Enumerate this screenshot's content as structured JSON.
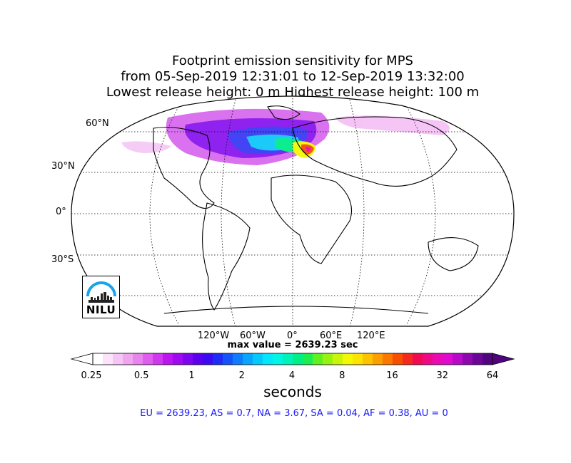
{
  "title": {
    "line1": "Footprint emission sensitivity for MPS",
    "line2": "from 05-Sep-2019 12:31:01 to 12-Sep-2019 13:32:00",
    "line3": "Lowest release height: 0 m       Highest release height: 100 m"
  },
  "map": {
    "projection": "Robinson",
    "lat_labels": [
      "60°N",
      "30°N",
      "0°",
      "30°S"
    ],
    "lon_labels": [
      "120°W",
      "60°W",
      "0°",
      "60°E",
      "120°E"
    ],
    "max_value_text": "max value = 2639.23 sec",
    "logo_text": "NILU"
  },
  "colorbar": {
    "ticks": [
      "0.25",
      "0.5",
      "1",
      "2",
      "4",
      "8",
      "16",
      "32",
      "64"
    ],
    "label": "seconds",
    "colors": [
      "#ffffff",
      "#fbe3fb",
      "#f5c6f5",
      "#efa6ef",
      "#e884ee",
      "#de5fee",
      "#cf38ef",
      "#bb16ef",
      "#9f0bf0",
      "#7d05f0",
      "#5a00ef",
      "#3a0af0",
      "#1f2bf6",
      "#1553fa",
      "#0e7cfc",
      "#08a4fd",
      "#05c8fd",
      "#03e6fb",
      "#00f5e4",
      "#00f2b8",
      "#00ee88",
      "#1cee52",
      "#5ff022",
      "#98f210",
      "#c9f50a",
      "#f3f804",
      "#fde400",
      "#fdc200",
      "#fc9e00",
      "#fa7800",
      "#f74f00",
      "#f42a1e",
      "#f00a52",
      "#ee0a86",
      "#ea0ab4",
      "#de0ad0",
      "#b60ac8",
      "#8e08b0",
      "#6c0698",
      "#50057e"
    ]
  },
  "stats_text": "EU = 2639.23,  AS = 0.7,  NA = 3.67,  SA = 0.04,  AF = 0.38,  AU = 0"
}
